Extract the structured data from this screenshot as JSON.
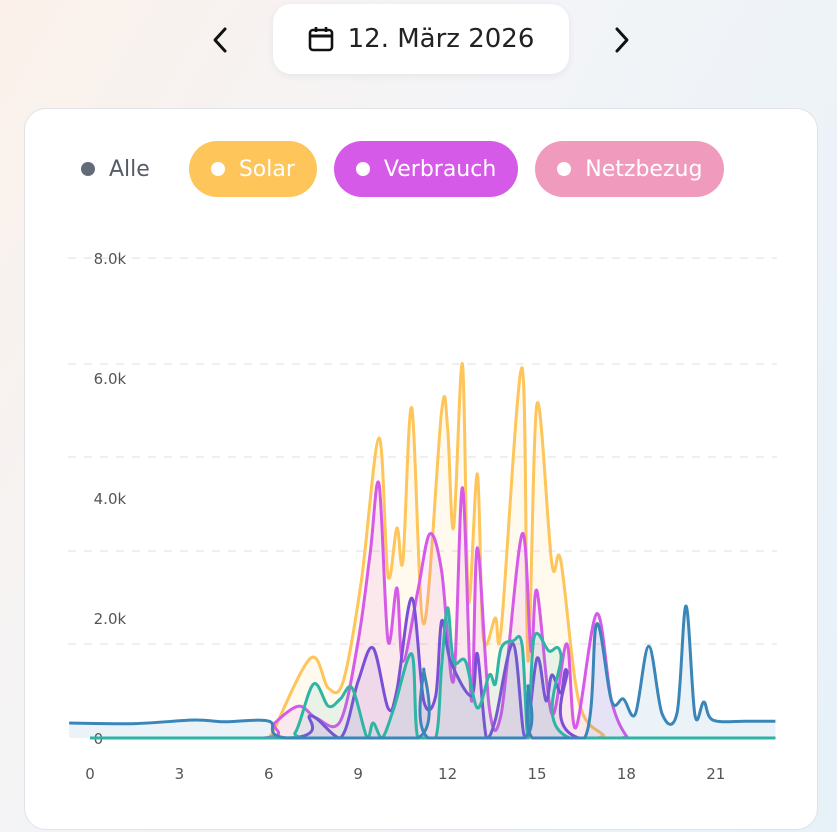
{
  "header": {
    "date_label": "12. März 2026",
    "prev_icon": "chevron-left-icon",
    "next_icon": "chevron-right-icon",
    "calendar_icon": "calendar-icon"
  },
  "filters": [
    {
      "label": "Alle",
      "color": "#ffffff"
    },
    {
      "label": "Solar",
      "color": "#fdc55a"
    },
    {
      "label": "Verbrauch",
      "color": "#d65ae8"
    },
    {
      "label": "Netzbezug",
      "color": "#f09bbe"
    }
  ],
  "chart_data": {
    "type": "area",
    "x_ticks": [
      "0",
      "3",
      "6",
      "9",
      "12",
      "15",
      "18",
      "21"
    ],
    "y_ticks": [
      "0",
      "2.0k",
      "4.0k",
      "6.0k",
      "8.0k"
    ],
    "xlim": [
      0,
      23
    ],
    "ylim": [
      0,
      8000
    ],
    "grid": "horizontal dashed",
    "series": [
      {
        "color": "#fdc55a",
        "points": [
          [
            0,
            0
          ],
          [
            6,
            0
          ],
          [
            6.1,
            60
          ],
          [
            7.4,
            1330
          ],
          [
            8.0,
            830
          ],
          [
            8.5,
            950
          ],
          [
            9.1,
            2600
          ],
          [
            9.7,
            5000
          ],
          [
            10.0,
            2700
          ],
          [
            10.3,
            3500
          ],
          [
            10.5,
            2950
          ],
          [
            10.8,
            5500
          ],
          [
            11.2,
            1900
          ],
          [
            11.8,
            5450
          ],
          [
            12.0,
            5170
          ],
          [
            12.2,
            3500
          ],
          [
            12.5,
            6230
          ],
          [
            12.7,
            2280
          ],
          [
            13.0,
            4400
          ],
          [
            13.2,
            1670
          ],
          [
            13.6,
            2000
          ],
          [
            13.8,
            1830
          ],
          [
            14.5,
            6170
          ],
          [
            14.7,
            1280
          ],
          [
            15.0,
            5570
          ],
          [
            15.5,
            2900
          ],
          [
            15.8,
            2950
          ],
          [
            16.4,
            620
          ],
          [
            17.2,
            60
          ],
          [
            17.6,
            0
          ],
          [
            23,
            0
          ]
        ]
      },
      {
        "color": "#d65ae8",
        "points": [
          [
            0,
            0
          ],
          [
            5.8,
            0
          ],
          [
            6.2,
            250
          ],
          [
            7.0,
            530
          ],
          [
            7.6,
            330
          ],
          [
            8.4,
            280
          ],
          [
            9.0,
            1620
          ],
          [
            9.4,
            3070
          ],
          [
            9.7,
            4230
          ],
          [
            10.0,
            1620
          ],
          [
            10.3,
            2500
          ],
          [
            10.5,
            1280
          ],
          [
            11.0,
            2450
          ],
          [
            11.4,
            3400
          ],
          [
            11.8,
            2780
          ],
          [
            12.2,
            950
          ],
          [
            12.5,
            4170
          ],
          [
            12.8,
            620
          ],
          [
            13.0,
            3170
          ],
          [
            13.4,
            500
          ],
          [
            13.8,
            400
          ],
          [
            14.5,
            3400
          ],
          [
            14.8,
            1450
          ],
          [
            15.0,
            2450
          ],
          [
            15.5,
            400
          ],
          [
            16.0,
            1570
          ],
          [
            16.3,
            170
          ],
          [
            17.0,
            2070
          ],
          [
            17.5,
            620
          ],
          [
            18.0,
            30
          ],
          [
            18.3,
            0
          ],
          [
            23,
            0
          ]
        ]
      },
      {
        "color": "#f09bbe",
        "points": [
          [
            0,
            0
          ],
          [
            23,
            0
          ]
        ]
      },
      {
        "color": "#7b4fd6",
        "points": [
          [
            0,
            0
          ],
          [
            6.8,
            0
          ],
          [
            7.4,
            370
          ],
          [
            8.4,
            0
          ],
          [
            9.0,
            950
          ],
          [
            9.5,
            1500
          ],
          [
            10.0,
            500
          ],
          [
            10.3,
            800
          ],
          [
            10.8,
            2330
          ],
          [
            11.2,
            620
          ],
          [
            11.6,
            700
          ],
          [
            11.8,
            1950
          ],
          [
            12.1,
            1280
          ],
          [
            12.8,
            700
          ],
          [
            13.0,
            1400
          ],
          [
            13.3,
            0
          ],
          [
            13.6,
            300
          ],
          [
            14.2,
            1570
          ],
          [
            14.6,
            0
          ],
          [
            15.0,
            1330
          ],
          [
            15.3,
            620
          ],
          [
            15.5,
            1050
          ],
          [
            15.8,
            750
          ],
          [
            16.0,
            1120
          ],
          [
            16.4,
            0
          ],
          [
            23,
            0
          ]
        ]
      },
      {
        "color": "#2fb5a5",
        "points": [
          [
            0,
            0
          ],
          [
            6.4,
            0
          ],
          [
            6.9,
            100
          ],
          [
            7.5,
            900
          ],
          [
            8.0,
            530
          ],
          [
            8.4,
            650
          ],
          [
            8.8,
            830
          ],
          [
            9.3,
            0
          ],
          [
            9.5,
            250
          ],
          [
            9.8,
            0
          ],
          [
            10.2,
            500
          ],
          [
            10.8,
            1400
          ],
          [
            11.0,
            0
          ],
          [
            11.6,
            0
          ],
          [
            11.8,
            1200
          ],
          [
            12.0,
            2170
          ],
          [
            12.2,
            1280
          ],
          [
            12.6,
            1280
          ],
          [
            13.0,
            500
          ],
          [
            13.4,
            1050
          ],
          [
            13.6,
            900
          ],
          [
            13.8,
            1500
          ],
          [
            14.2,
            1620
          ],
          [
            14.5,
            1550
          ],
          [
            14.7,
            0
          ],
          [
            14.9,
            1670
          ],
          [
            15.4,
            1450
          ],
          [
            15.8,
            1400
          ],
          [
            16.1,
            0
          ],
          [
            23,
            0
          ]
        ]
      },
      {
        "color": "#3a86b8",
        "points": [
          [
            -0.7,
            250
          ],
          [
            1.5,
            240
          ],
          [
            3.5,
            300
          ],
          [
            4.5,
            270
          ],
          [
            6.0,
            280
          ],
          [
            6.6,
            0
          ],
          [
            11.0,
            0
          ],
          [
            11.2,
            1150
          ],
          [
            11.35,
            0
          ],
          [
            14.55,
            0
          ],
          [
            14.7,
            870
          ],
          [
            14.85,
            0
          ],
          [
            16.6,
            0
          ],
          [
            17.0,
            1900
          ],
          [
            17.5,
            620
          ],
          [
            17.9,
            650
          ],
          [
            18.3,
            400
          ],
          [
            18.75,
            1530
          ],
          [
            19.2,
            400
          ],
          [
            19.7,
            420
          ],
          [
            20.0,
            2200
          ],
          [
            20.3,
            380
          ],
          [
            20.6,
            600
          ],
          [
            20.9,
            300
          ],
          [
            22.0,
            280
          ],
          [
            23,
            280
          ]
        ]
      }
    ]
  }
}
